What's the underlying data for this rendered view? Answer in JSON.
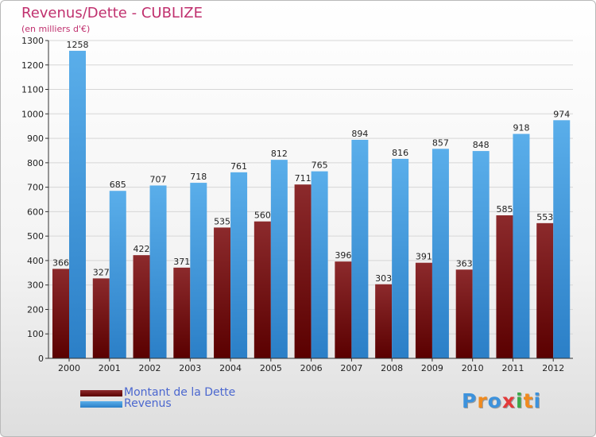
{
  "title": "Revenus/Dette - CUBLIZE",
  "subtitle": "(en milliers d'€)",
  "legend": [
    {
      "label": "Montant de la Dette",
      "color": "#6b0e0e"
    },
    {
      "label": "Revenus",
      "color": "#3b97e0"
    }
  ],
  "logo": {
    "text": "Proxiti",
    "letter_colors": [
      "#3d92dc",
      "#f08a1e",
      "#3d92dc",
      "#e23a3a",
      "#3ba84a",
      "#f08a1e",
      "#3d92dc"
    ]
  },
  "chart_data": {
    "type": "bar",
    "title": "Revenus/Dette - CUBLIZE",
    "subtitle": "(en milliers d'€)",
    "xlabel": "",
    "ylabel": "",
    "categories": [
      "2000",
      "2001",
      "2002",
      "2003",
      "2004",
      "2005",
      "2006",
      "2007",
      "2008",
      "2009",
      "2010",
      "2011",
      "2012"
    ],
    "series": [
      {
        "name": "Montant de la Dette",
        "color": "#6b0e0e",
        "values": [
          366,
          327,
          422,
          371,
          535,
          560,
          711,
          396,
          303,
          391,
          363,
          585,
          553
        ]
      },
      {
        "name": "Revenus",
        "color": "#3b97e0",
        "values": [
          1258,
          685,
          707,
          718,
          761,
          812,
          765,
          894,
          816,
          857,
          848,
          918,
          974
        ]
      }
    ],
    "ylim": [
      0,
      1300
    ],
    "yticks": [
      0,
      100,
      200,
      300,
      400,
      500,
      600,
      700,
      800,
      900,
      1000,
      1100,
      1200,
      1300
    ],
    "grid": true,
    "legend_position": "bottom-left"
  }
}
